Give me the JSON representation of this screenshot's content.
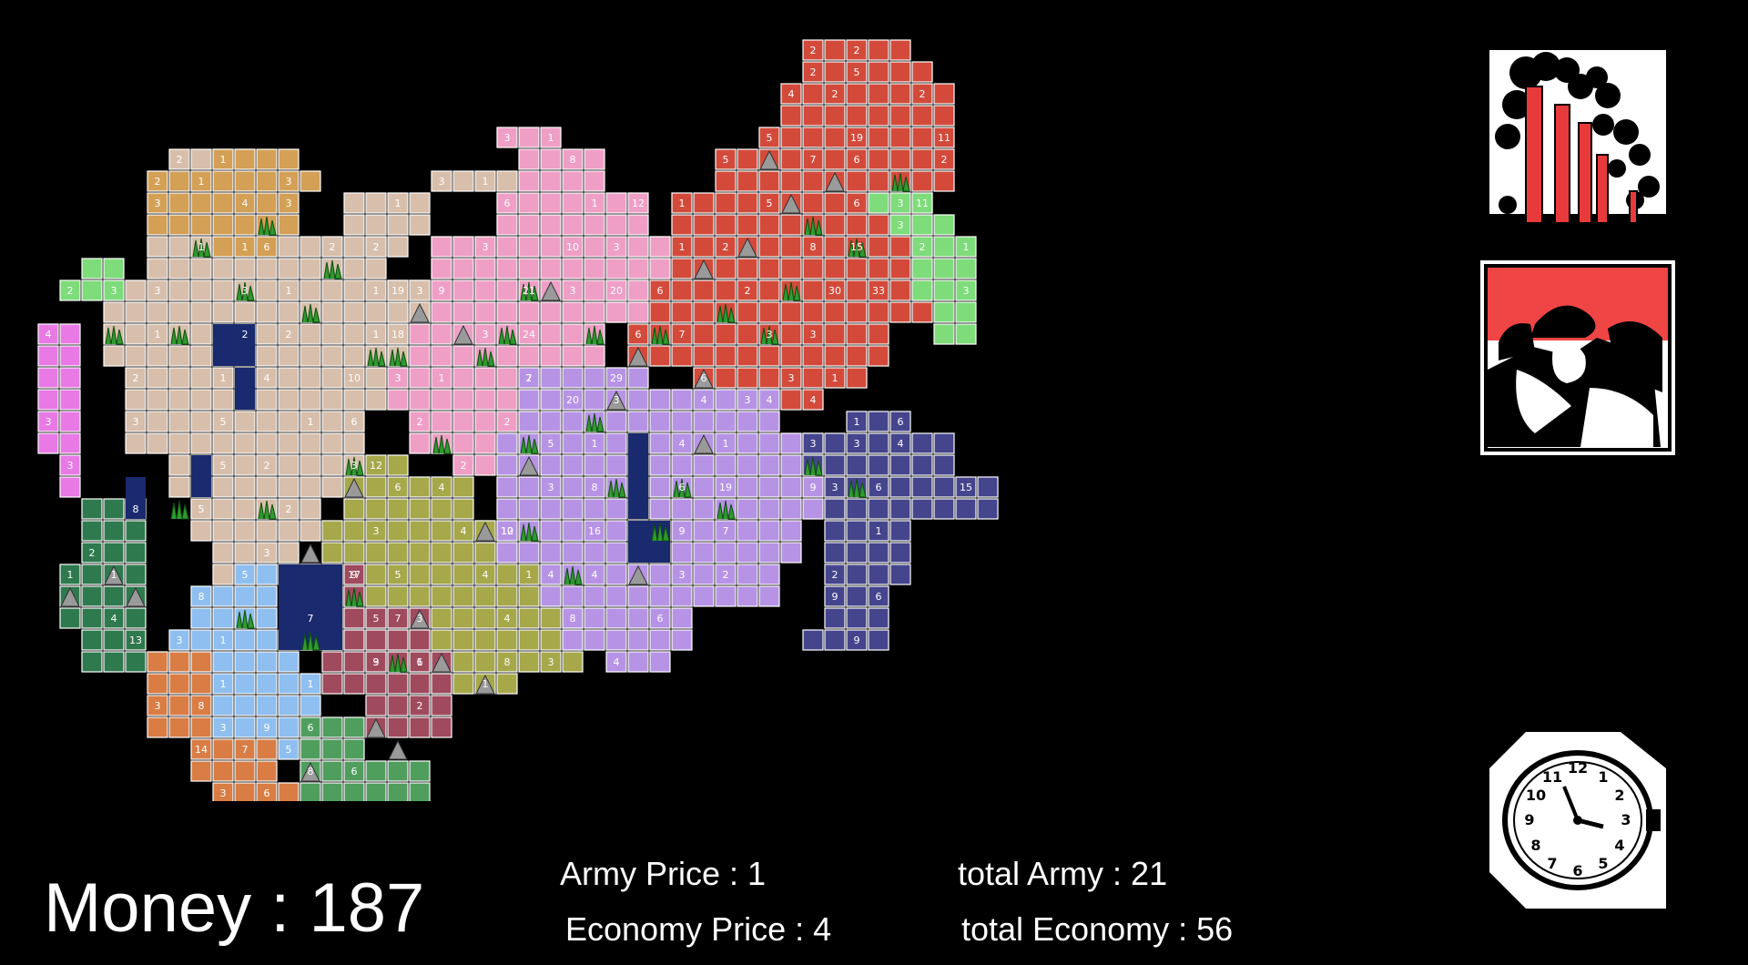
{
  "hud": {
    "money": "Money : 187",
    "army_price": "Army Price : 1",
    "economy_price": "Economy Price : 4",
    "total_army": "total Army : 21",
    "total_economy": "total Economy : 56"
  },
  "buttons": {
    "economy": {
      "icon": "factory-icon"
    },
    "army": {
      "icon": "soldiers-icon"
    },
    "end_turn": {
      "icon": "clock-icon"
    }
  },
  "colors": {
    "background": "#000000",
    "tile_border": "#ffffff",
    "factions": {
      "orange_brown": "#d4a055",
      "beige": "#d8bfab",
      "pink": "#ef9fc6",
      "red": "#d34a3b",
      "light_green": "#7edc7a",
      "magenta": "#e879e5",
      "dark_green": "#2e7a4e",
      "olive": "#a6a84a",
      "lavender": "#b793e6",
      "indigo": "#45458e",
      "sky_blue": "#8ebff0",
      "burnt_orange": "#d97d45",
      "maroon": "#a04a5e",
      "medium_green": "#4f9e5e",
      "lake": "#1a2a6e"
    }
  },
  "tile_labels": [
    "2",
    "2",
    "2",
    "5",
    "4",
    "2",
    "2",
    "5",
    "19",
    "11",
    "5",
    "7",
    "6",
    "2",
    "1",
    "5",
    "6",
    "3",
    "1",
    "2",
    "8",
    "15",
    "20",
    "6",
    "2",
    "30",
    "33",
    "6",
    "7",
    "3",
    "3",
    "6",
    "3",
    "1",
    "4",
    "4",
    "11",
    "3",
    "2",
    "1",
    "3",
    "3",
    "1",
    "8",
    "6",
    "1",
    "12",
    "3",
    "10",
    "3",
    "19",
    "9",
    "21",
    "3",
    "18",
    "3",
    "24",
    "3",
    "1",
    "2",
    "2",
    "2",
    "2",
    "2",
    "3",
    "1",
    "1",
    "2",
    "1",
    "1",
    "2",
    "3",
    "3",
    "3",
    "1",
    "1",
    "3",
    "1",
    "2",
    "2",
    "1",
    "2",
    "1",
    "4",
    "10",
    "3",
    "5",
    "1",
    "6",
    "5",
    "2",
    "3",
    "5",
    "2",
    "3",
    "1",
    "2",
    "1",
    "3",
    "3",
    "4",
    "3",
    "6",
    "2",
    "4",
    "3",
    "3",
    "2",
    "8",
    "1",
    "1",
    "4",
    "13",
    "12",
    "6",
    "4",
    "3",
    "4",
    "12",
    "9",
    "5",
    "4",
    "1",
    "5",
    "3",
    "4",
    "3",
    "1",
    "8",
    "3",
    "1",
    "7",
    "29",
    "20",
    "3",
    "4",
    "3",
    "5",
    "1",
    "4",
    "1",
    "3",
    "3",
    "8",
    "6",
    "19",
    "9",
    "10",
    "16",
    "9",
    "7",
    "4",
    "4",
    "3",
    "2",
    "8",
    "6",
    "4",
    "1",
    "6",
    "3",
    "4",
    "3",
    "6",
    "15",
    "2",
    "1",
    "9",
    "6",
    "9",
    "5",
    "8",
    "3",
    "1",
    "1",
    "3",
    "9",
    "1",
    "7",
    "5",
    "3",
    "8",
    "14",
    "3",
    "6",
    "17",
    "7",
    "7",
    "9",
    "6",
    "2",
    "6",
    "8",
    "6",
    "13"
  ]
}
